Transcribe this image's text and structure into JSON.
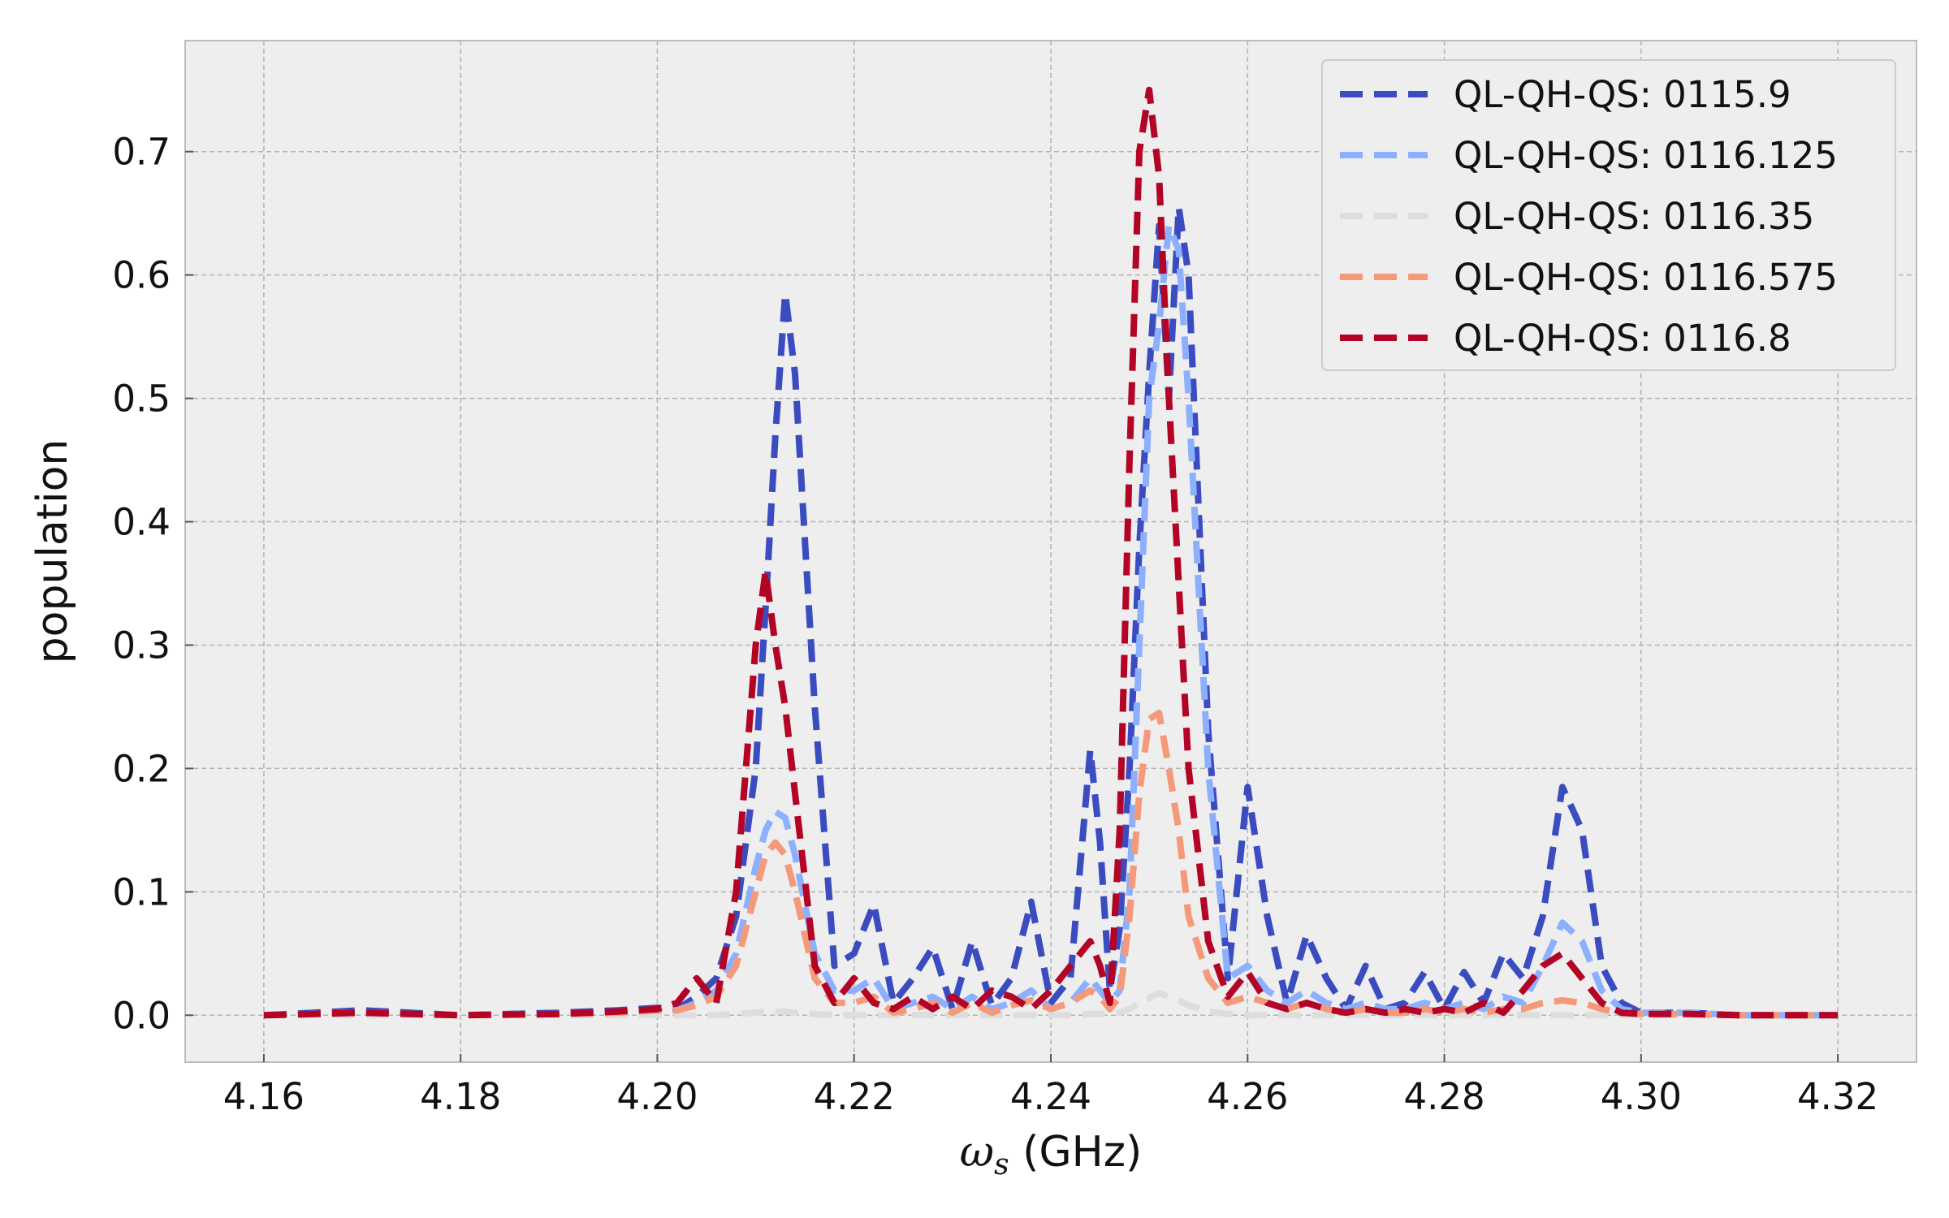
{
  "chart_data": {
    "type": "line",
    "xlabel_symbol": "ω",
    "xlabel_subscript": "s",
    "xlabel_unit": " (GHz)",
    "ylabel": "population",
    "xlim": [
      4.152,
      4.328
    ],
    "ylim": [
      -0.038,
      0.79
    ],
    "x_ticks": [
      4.16,
      4.18,
      4.2,
      4.22,
      4.24,
      4.26,
      4.28,
      4.3,
      4.32
    ],
    "x_tick_labels": [
      "4.16",
      "4.18",
      "4.20",
      "4.22",
      "4.24",
      "4.26",
      "4.28",
      "4.30",
      "4.32"
    ],
    "y_ticks": [
      0.0,
      0.1,
      0.2,
      0.3,
      0.4,
      0.5,
      0.6,
      0.7
    ],
    "y_tick_labels": [
      "0.0",
      "0.1",
      "0.2",
      "0.3",
      "0.4",
      "0.5",
      "0.6",
      "0.7"
    ],
    "grid": true,
    "legend_position": "top-right",
    "line_style": "dashed",
    "x": [
      4.16,
      4.17,
      4.18,
      4.19,
      4.196,
      4.2,
      4.202,
      4.204,
      4.206,
      4.208,
      4.21,
      4.211,
      4.212,
      4.213,
      4.214,
      4.216,
      4.218,
      4.22,
      4.222,
      4.224,
      4.226,
      4.228,
      4.23,
      4.232,
      4.234,
      4.236,
      4.238,
      4.24,
      4.242,
      4.244,
      4.245,
      4.246,
      4.247,
      4.248,
      4.249,
      4.25,
      4.251,
      4.252,
      4.253,
      4.254,
      4.256,
      4.258,
      4.26,
      4.262,
      4.264,
      4.266,
      4.268,
      4.27,
      4.272,
      4.274,
      4.276,
      4.278,
      4.28,
      4.282,
      4.284,
      4.286,
      4.288,
      4.29,
      4.292,
      4.294,
      4.296,
      4.298,
      4.3,
      4.305,
      4.31,
      4.32
    ],
    "series": [
      {
        "name": "QL-QH-QS: 0115.9",
        "color": "#3b4cc0",
        "values": [
          0.0,
          0.004,
          0.0,
          0.002,
          0.004,
          0.006,
          0.005,
          0.015,
          0.03,
          0.08,
          0.2,
          0.33,
          0.47,
          0.585,
          0.52,
          0.25,
          0.04,
          0.05,
          0.09,
          0.01,
          0.03,
          0.055,
          0.005,
          0.06,
          0.008,
          0.03,
          0.092,
          0.01,
          0.03,
          0.215,
          0.14,
          0.02,
          0.07,
          0.2,
          0.38,
          0.52,
          0.64,
          0.5,
          0.655,
          0.6,
          0.23,
          0.03,
          0.185,
          0.08,
          0.01,
          0.065,
          0.03,
          0.005,
          0.04,
          0.005,
          0.01,
          0.035,
          0.005,
          0.035,
          0.01,
          0.05,
          0.03,
          0.08,
          0.185,
          0.15,
          0.04,
          0.01,
          0.002,
          0.002,
          0.0,
          0.0
        ]
      },
      {
        "name": "QL-QH-QS: 0116.125",
        "color": "#8db0fe",
        "values": [
          0.0,
          0.002,
          0.0,
          0.001,
          0.002,
          0.004,
          0.004,
          0.01,
          0.02,
          0.05,
          0.12,
          0.15,
          0.165,
          0.16,
          0.13,
          0.05,
          0.02,
          0.02,
          0.03,
          0.005,
          0.01,
          0.015,
          0.005,
          0.015,
          0.005,
          0.01,
          0.02,
          0.005,
          0.01,
          0.03,
          0.02,
          0.01,
          0.02,
          0.1,
          0.3,
          0.5,
          0.56,
          0.64,
          0.62,
          0.5,
          0.2,
          0.03,
          0.04,
          0.02,
          0.01,
          0.02,
          0.01,
          0.005,
          0.01,
          0.005,
          0.005,
          0.01,
          0.005,
          0.01,
          0.005,
          0.015,
          0.01,
          0.04,
          0.075,
          0.06,
          0.02,
          0.005,
          0.002,
          0.002,
          0.0,
          0.0
        ]
      },
      {
        "name": "QL-QH-QS: 0116.35",
        "color": "#dddddd",
        "values": [
          0.0,
          0.0,
          0.0,
          0.0,
          0.0,
          0.0,
          0.0,
          0.0,
          0.0,
          0.001,
          0.002,
          0.003,
          0.003,
          0.003,
          0.002,
          0.001,
          0.0,
          0.0,
          0.0,
          0.0,
          0.0,
          0.0,
          0.0,
          0.0,
          0.0,
          0.0,
          0.0,
          0.0,
          0.0,
          0.001,
          0.001,
          0.001,
          0.002,
          0.005,
          0.01,
          0.014,
          0.018,
          0.015,
          0.012,
          0.008,
          0.003,
          0.001,
          0.0,
          0.0,
          0.0,
          0.0,
          0.0,
          0.0,
          0.0,
          0.0,
          0.0,
          0.0,
          0.0,
          0.0,
          0.0,
          0.0,
          0.0,
          0.0,
          0.0,
          0.0,
          0.0,
          0.0,
          0.0,
          0.0,
          0.0,
          0.0
        ]
      },
      {
        "name": "QL-QH-QS: 0116.575",
        "color": "#f49a7b",
        "values": [
          0.0,
          0.002,
          0.0,
          0.001,
          0.002,
          0.004,
          0.004,
          0.008,
          0.015,
          0.04,
          0.1,
          0.13,
          0.14,
          0.13,
          0.1,
          0.03,
          0.01,
          0.01,
          0.015,
          0.002,
          0.005,
          0.01,
          0.002,
          0.01,
          0.002,
          0.008,
          0.012,
          0.005,
          0.01,
          0.02,
          0.015,
          0.005,
          0.015,
          0.08,
          0.18,
          0.24,
          0.245,
          0.2,
          0.15,
          0.08,
          0.03,
          0.01,
          0.015,
          0.01,
          0.005,
          0.01,
          0.005,
          0.002,
          0.005,
          0.002,
          0.002,
          0.005,
          0.002,
          0.005,
          0.002,
          0.005,
          0.005,
          0.01,
          0.012,
          0.01,
          0.005,
          0.002,
          0.001,
          0.001,
          0.0,
          0.0
        ]
      },
      {
        "name": "QL-QH-QS: 0116.8",
        "color": "#b40426",
        "values": [
          0.0,
          0.002,
          0.0,
          0.001,
          0.003,
          0.005,
          0.01,
          0.03,
          0.01,
          0.1,
          0.3,
          0.36,
          0.3,
          0.25,
          0.18,
          0.04,
          0.01,
          0.03,
          0.01,
          0.005,
          0.015,
          0.005,
          0.015,
          0.005,
          0.02,
          0.015,
          0.005,
          0.02,
          0.04,
          0.06,
          0.04,
          0.01,
          0.15,
          0.45,
          0.7,
          0.75,
          0.68,
          0.5,
          0.35,
          0.2,
          0.06,
          0.015,
          0.035,
          0.01,
          0.005,
          0.01,
          0.005,
          0.002,
          0.005,
          0.002,
          0.005,
          0.002,
          0.005,
          0.002,
          0.01,
          0.002,
          0.02,
          0.04,
          0.05,
          0.03,
          0.01,
          0.002,
          0.001,
          0.001,
          0.0,
          0.0
        ]
      }
    ]
  }
}
